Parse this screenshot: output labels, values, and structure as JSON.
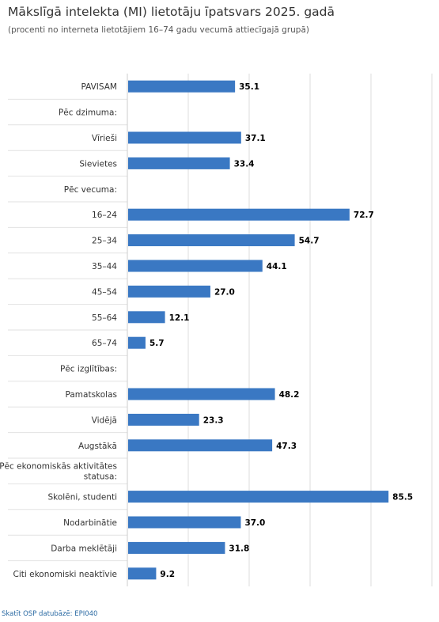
{
  "title": "Mākslīgā intelekta (MI) lietotāju īpatsvars 2025. gadā",
  "subtitle": "(procenti no interneta lietotājiem 16–74 gadu vecumā attiecīgajā grupā)",
  "source": "Skatīt OSP datubāzē: EPI040",
  "chart_data": {
    "type": "bar",
    "orientation": "horizontal",
    "title": "Mākslīgā intelekta (MI) lietotāju īpatsvars 2025. gadā",
    "subtitle": "(procenti no interneta lietotājiem 16–74 gadu vecumā attiecīgajā grupā)",
    "categories": [
      "PAVISAM",
      "Pēc dzimuma:",
      "Vīrieši",
      "Sievietes",
      "Pēc vecuma:",
      "16–24",
      "25–34",
      "35–44",
      "45–54",
      "55–64",
      "65–74",
      "Pēc izglītības:",
      "Pamatskolas",
      "Vidējā",
      "Augstākā",
      "Pēc ekonomiskās aktivitātes statusa:",
      "Skolēni, studenti",
      "Nodarbinātie",
      "Darba meklētāji",
      "Citi ekonomiski neaktīvie"
    ],
    "values": [
      35.1,
      null,
      37.1,
      33.4,
      null,
      72.7,
      54.7,
      44.1,
      27.0,
      12.1,
      5.7,
      null,
      48.2,
      23.3,
      47.3,
      null,
      85.5,
      37.0,
      31.8,
      9.2
    ],
    "value_labels": [
      "35.1",
      "",
      "37.1",
      "33.4",
      "",
      "72.7",
      "54.7",
      "44.1",
      "27.0",
      "12.1",
      "5.7",
      "",
      "48.2",
      "23.3",
      "47.3",
      "",
      "85.5",
      "37.0",
      "31.8",
      "9.2"
    ],
    "xlim": [
      0,
      100
    ],
    "grid": true,
    "bar_color": "#3a78c3"
  }
}
